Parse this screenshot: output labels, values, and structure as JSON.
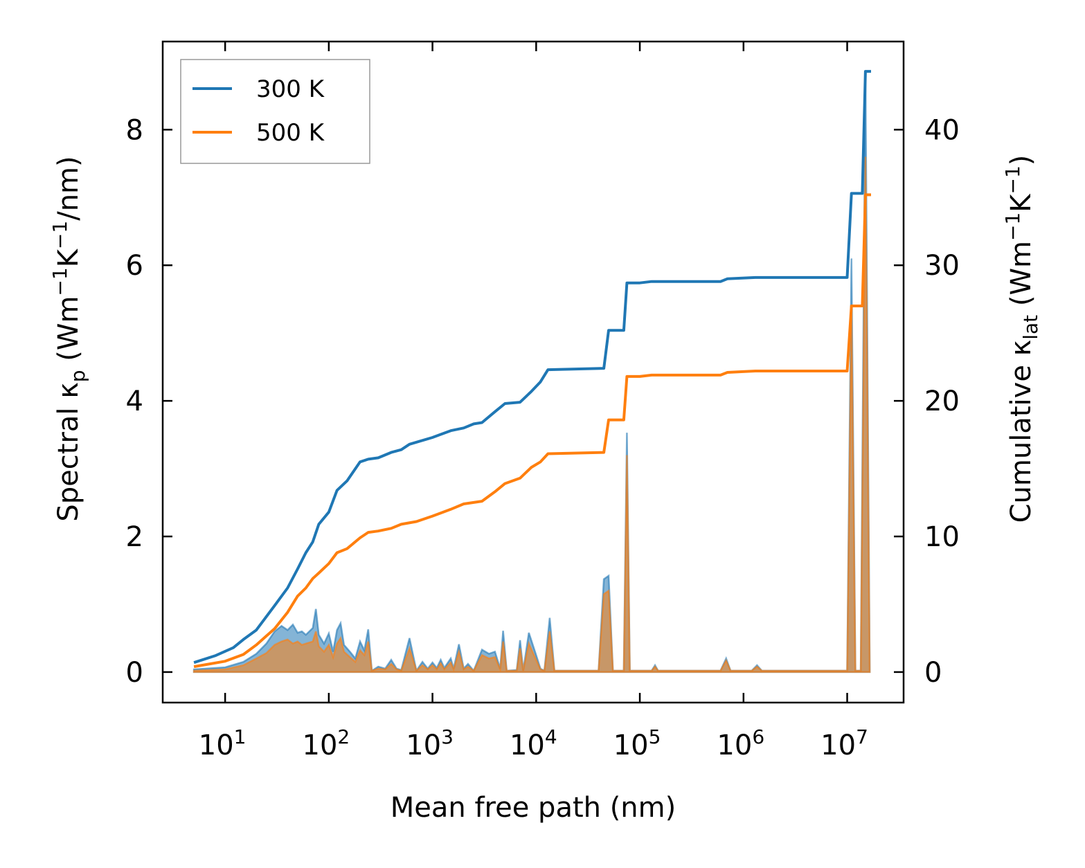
{
  "chart_data": {
    "type": "line",
    "xlabel": "Mean free path (nm)",
    "ylabel_left": {
      "prefix": "Spectral κ",
      "sub": "p",
      "unit_pre": " (Wm",
      "sup1": "−1",
      "unit_mid": "K",
      "sup2": "−1",
      "unit_post": "/nm)"
    },
    "ylabel_right": {
      "prefix": "Cumulative κ",
      "sub": "lat",
      "unit_pre": " (Wm",
      "sup1": "−1",
      "unit_mid": "K",
      "sup2": "−1",
      "unit_post": ")"
    },
    "x_scale": "log",
    "x_range": [
      2.5,
      35000000
    ],
    "y_left_range": [
      -0.45,
      9.3
    ],
    "y_right_range": [
      -2.25,
      46.5
    ],
    "x_ticks": [
      {
        "base": "10",
        "exp": "1",
        "value": 10
      },
      {
        "base": "10",
        "exp": "2",
        "value": 100
      },
      {
        "base": "10",
        "exp": "3",
        "value": 1000
      },
      {
        "base": "10",
        "exp": "4",
        "value": 10000
      },
      {
        "base": "10",
        "exp": "5",
        "value": 100000
      },
      {
        "base": "10",
        "exp": "6",
        "value": 1000000
      },
      {
        "base": "10",
        "exp": "7",
        "value": 10000000
      }
    ],
    "y_left_ticks": [
      "0",
      "2",
      "4",
      "6",
      "8"
    ],
    "y_right_ticks": [
      "0",
      "10",
      "20",
      "30",
      "40"
    ],
    "legend": {
      "placement": "top-left"
    },
    "series": [
      {
        "name": "300 K",
        "color": "#1f77b4",
        "axis": "right",
        "cumulative": [
          [
            5,
            0.7
          ],
          [
            8,
            1.2
          ],
          [
            12,
            1.8
          ],
          [
            15,
            2.4
          ],
          [
            20,
            3.1
          ],
          [
            30,
            4.9
          ],
          [
            40,
            6.2
          ],
          [
            50,
            7.6
          ],
          [
            60,
            8.8
          ],
          [
            70,
            9.6
          ],
          [
            80,
            10.9
          ],
          [
            100,
            11.8
          ],
          [
            120,
            13.4
          ],
          [
            150,
            14.1
          ],
          [
            200,
            15.5
          ],
          [
            240,
            15.7
          ],
          [
            300,
            15.8
          ],
          [
            400,
            16.2
          ],
          [
            500,
            16.4
          ],
          [
            600,
            16.8
          ],
          [
            1000,
            17.3
          ],
          [
            1500,
            17.8
          ],
          [
            2000,
            18.0
          ],
          [
            2500,
            18.3
          ],
          [
            3000,
            18.4
          ],
          [
            4000,
            19.2
          ],
          [
            5000,
            19.8
          ],
          [
            7000,
            19.9
          ],
          [
            9000,
            20.7
          ],
          [
            11000,
            21.4
          ],
          [
            13000,
            22.3
          ],
          [
            45000,
            22.4
          ],
          [
            50000,
            25.2
          ],
          [
            70000,
            25.2
          ],
          [
            75000,
            28.7
          ],
          [
            100000,
            28.7
          ],
          [
            130000,
            28.8
          ],
          [
            600000,
            28.8
          ],
          [
            700000,
            29.0
          ],
          [
            1300000,
            29.1
          ],
          [
            10000000,
            29.1
          ],
          [
            11000000,
            35.3
          ],
          [
            14000000,
            35.3
          ],
          [
            15000000,
            44.3
          ],
          [
            17000000,
            44.3
          ]
        ],
        "spectral": [
          [
            5,
            0.04
          ],
          [
            10,
            0.07
          ],
          [
            15,
            0.15
          ],
          [
            20,
            0.27
          ],
          [
            25,
            0.42
          ],
          [
            30,
            0.6
          ],
          [
            35,
            0.68
          ],
          [
            40,
            0.62
          ],
          [
            45,
            0.7
          ],
          [
            50,
            0.58
          ],
          [
            55,
            0.6
          ],
          [
            60,
            0.55
          ],
          [
            70,
            0.65
          ],
          [
            75,
            0.93
          ],
          [
            80,
            0.55
          ],
          [
            90,
            0.42
          ],
          [
            100,
            0.57
          ],
          [
            110,
            0.3
          ],
          [
            120,
            0.62
          ],
          [
            130,
            0.72
          ],
          [
            140,
            0.4
          ],
          [
            160,
            0.3
          ],
          [
            180,
            0.2
          ],
          [
            200,
            0.45
          ],
          [
            220,
            0.32
          ],
          [
            240,
            0.63
          ],
          [
            260,
            0.02
          ],
          [
            300,
            0.08
          ],
          [
            350,
            0.05
          ],
          [
            400,
            0.18
          ],
          [
            450,
            0.05
          ],
          [
            500,
            0.03
          ],
          [
            600,
            0.5
          ],
          [
            700,
            0.02
          ],
          [
            800,
            0.15
          ],
          [
            900,
            0.05
          ],
          [
            1000,
            0.14
          ],
          [
            1100,
            0.06
          ],
          [
            1200,
            0.18
          ],
          [
            1300,
            0.06
          ],
          [
            1500,
            0.2
          ],
          [
            1600,
            0.05
          ],
          [
            1800,
            0.41
          ],
          [
            2000,
            0.05
          ],
          [
            2200,
            0.12
          ],
          [
            2500,
            0.02
          ],
          [
            3000,
            0.33
          ],
          [
            3500,
            0.27
          ],
          [
            4000,
            0.3
          ],
          [
            4500,
            0.05
          ],
          [
            4800,
            0.61
          ],
          [
            5200,
            0.02
          ],
          [
            6500,
            0.03
          ],
          [
            7000,
            0.47
          ],
          [
            7500,
            0.02
          ],
          [
            8500,
            0.58
          ],
          [
            10000,
            0.25
          ],
          [
            11000,
            0.05
          ],
          [
            12000,
            0.02
          ],
          [
            13500,
            0.8
          ],
          [
            15000,
            0.02
          ],
          [
            40000,
            0.02
          ],
          [
            45000,
            1.37
          ],
          [
            50000,
            1.42
          ],
          [
            55000,
            0.02
          ],
          [
            70000,
            0.02
          ],
          [
            75000,
            3.53
          ],
          [
            80000,
            0.02
          ],
          [
            130000,
            0.02
          ],
          [
            140000,
            0.1
          ],
          [
            150000,
            0.02
          ],
          [
            600000,
            0.02
          ],
          [
            680000,
            0.2
          ],
          [
            750000,
            0.02
          ],
          [
            1200000,
            0.02
          ],
          [
            1350000,
            0.1
          ],
          [
            1500000,
            0.02
          ],
          [
            10000000,
            0.02
          ],
          [
            11000000,
            6.1
          ],
          [
            12000000,
            0.02
          ],
          [
            13500000,
            0.02
          ],
          [
            15000000,
            8.85
          ],
          [
            16500000,
            0.02
          ]
        ]
      },
      {
        "name": "500 K",
        "color": "#ff7f0e",
        "axis": "right",
        "cumulative": [
          [
            5,
            0.4
          ],
          [
            10,
            0.8
          ],
          [
            15,
            1.3
          ],
          [
            20,
            2.0
          ],
          [
            30,
            3.2
          ],
          [
            40,
            4.4
          ],
          [
            50,
            5.6
          ],
          [
            60,
            6.2
          ],
          [
            70,
            6.9
          ],
          [
            80,
            7.3
          ],
          [
            100,
            8.0
          ],
          [
            120,
            8.8
          ],
          [
            150,
            9.1
          ],
          [
            200,
            9.9
          ],
          [
            240,
            10.3
          ],
          [
            300,
            10.4
          ],
          [
            400,
            10.6
          ],
          [
            500,
            10.9
          ],
          [
            700,
            11.1
          ],
          [
            1000,
            11.5
          ],
          [
            1500,
            12.0
          ],
          [
            2000,
            12.4
          ],
          [
            3000,
            12.6
          ],
          [
            4000,
            13.3
          ],
          [
            5000,
            13.9
          ],
          [
            7000,
            14.3
          ],
          [
            9000,
            15.1
          ],
          [
            11000,
            15.5
          ],
          [
            13000,
            16.1
          ],
          [
            45000,
            16.2
          ],
          [
            50000,
            18.6
          ],
          [
            70000,
            18.6
          ],
          [
            75000,
            21.8
          ],
          [
            100000,
            21.8
          ],
          [
            130000,
            21.9
          ],
          [
            600000,
            21.9
          ],
          [
            700000,
            22.1
          ],
          [
            1300000,
            22.2
          ],
          [
            10000000,
            22.2
          ],
          [
            11000000,
            27.0
          ],
          [
            14000000,
            27.0
          ],
          [
            15000000,
            35.2
          ],
          [
            17000000,
            35.2
          ]
        ],
        "spectral": [
          [
            5,
            0.02
          ],
          [
            10,
            0.04
          ],
          [
            15,
            0.1
          ],
          [
            20,
            0.2
          ],
          [
            25,
            0.28
          ],
          [
            30,
            0.4
          ],
          [
            35,
            0.45
          ],
          [
            40,
            0.48
          ],
          [
            45,
            0.42
          ],
          [
            50,
            0.45
          ],
          [
            55,
            0.4
          ],
          [
            60,
            0.42
          ],
          [
            70,
            0.45
          ],
          [
            75,
            0.6
          ],
          [
            80,
            0.38
          ],
          [
            90,
            0.3
          ],
          [
            100,
            0.4
          ],
          [
            110,
            0.22
          ],
          [
            120,
            0.42
          ],
          [
            130,
            0.5
          ],
          [
            140,
            0.3
          ],
          [
            160,
            0.22
          ],
          [
            180,
            0.15
          ],
          [
            200,
            0.32
          ],
          [
            220,
            0.25
          ],
          [
            240,
            0.45
          ],
          [
            260,
            0.02
          ],
          [
            300,
            0.05
          ],
          [
            350,
            0.04
          ],
          [
            400,
            0.12
          ],
          [
            450,
            0.04
          ],
          [
            500,
            0.02
          ],
          [
            600,
            0.35
          ],
          [
            700,
            0.02
          ],
          [
            800,
            0.1
          ],
          [
            900,
            0.04
          ],
          [
            1000,
            0.1
          ],
          [
            1100,
            0.04
          ],
          [
            1200,
            0.13
          ],
          [
            1300,
            0.04
          ],
          [
            1500,
            0.14
          ],
          [
            1600,
            0.04
          ],
          [
            1800,
            0.3
          ],
          [
            2000,
            0.04
          ],
          [
            2200,
            0.08
          ],
          [
            2500,
            0.02
          ],
          [
            3000,
            0.25
          ],
          [
            3500,
            0.2
          ],
          [
            4000,
            0.22
          ],
          [
            4500,
            0.04
          ],
          [
            4800,
            0.45
          ],
          [
            5200,
            0.02
          ],
          [
            6500,
            0.02
          ],
          [
            7000,
            0.35
          ],
          [
            7500,
            0.02
          ],
          [
            8500,
            0.42
          ],
          [
            10000,
            0.18
          ],
          [
            11000,
            0.04
          ],
          [
            12000,
            0.02
          ],
          [
            13500,
            0.6
          ],
          [
            15000,
            0.02
          ],
          [
            40000,
            0.02
          ],
          [
            45000,
            1.15
          ],
          [
            50000,
            1.2
          ],
          [
            55000,
            0.02
          ],
          [
            70000,
            0.02
          ],
          [
            75000,
            3.2
          ],
          [
            80000,
            0.02
          ],
          [
            130000,
            0.02
          ],
          [
            140000,
            0.08
          ],
          [
            150000,
            0.02
          ],
          [
            600000,
            0.02
          ],
          [
            680000,
            0.17
          ],
          [
            750000,
            0.02
          ],
          [
            1200000,
            0.02
          ],
          [
            1350000,
            0.08
          ],
          [
            1500000,
            0.02
          ],
          [
            10000000,
            0.02
          ],
          [
            11000000,
            5.4
          ],
          [
            12000000,
            0.02
          ],
          [
            13500000,
            0.02
          ],
          [
            15000000,
            7.6
          ],
          [
            16500000,
            0.02
          ]
        ]
      }
    ]
  }
}
